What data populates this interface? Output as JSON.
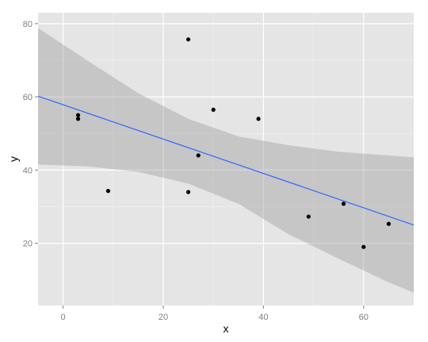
{
  "chart_data": {
    "type": "scatter",
    "title": "",
    "xlabel": "x",
    "ylabel": "y",
    "xlim": [
      -5,
      70
    ],
    "ylim": [
      3,
      83
    ],
    "x_ticks": [
      0,
      20,
      40,
      60
    ],
    "y_ticks": [
      20,
      40,
      60,
      80
    ],
    "x_minor": [
      10,
      30,
      50
    ],
    "y_minor": [
      30,
      50,
      70
    ],
    "grid": true,
    "points": [
      {
        "x": 3,
        "y": 55
      },
      {
        "x": 3,
        "y": 54
      },
      {
        "x": 9,
        "y": 34.3
      },
      {
        "x": 25,
        "y": 75.7
      },
      {
        "x": 25,
        "y": 34
      },
      {
        "x": 27,
        "y": 44
      },
      {
        "x": 30,
        "y": 56.5
      },
      {
        "x": 39,
        "y": 54
      },
      {
        "x": 49,
        "y": 27.3
      },
      {
        "x": 56,
        "y": 30.8
      },
      {
        "x": 60,
        "y": 19
      },
      {
        "x": 65,
        "y": 25.3
      }
    ],
    "fit_line": {
      "x": [
        -5,
        70
      ],
      "y": [
        60.2,
        25
      ]
    },
    "confidence_band": {
      "x": [
        -5,
        5,
        15,
        25,
        35,
        45,
        55,
        65,
        70
      ],
      "upper": [
        78.8,
        69.8,
        61,
        54,
        49.2,
        46.8,
        45,
        44,
        43.5
      ],
      "lower": [
        41.5,
        41,
        39.5,
        36.3,
        30.8,
        22.5,
        15.8,
        9.3,
        6.5
      ]
    },
    "colors": {
      "panel": "#e5e5e5",
      "grid_major": "#ffffff",
      "grid_minor": "#f2f2f2",
      "band": "#999999",
      "line": "#3366ff",
      "points": "#000000"
    }
  }
}
